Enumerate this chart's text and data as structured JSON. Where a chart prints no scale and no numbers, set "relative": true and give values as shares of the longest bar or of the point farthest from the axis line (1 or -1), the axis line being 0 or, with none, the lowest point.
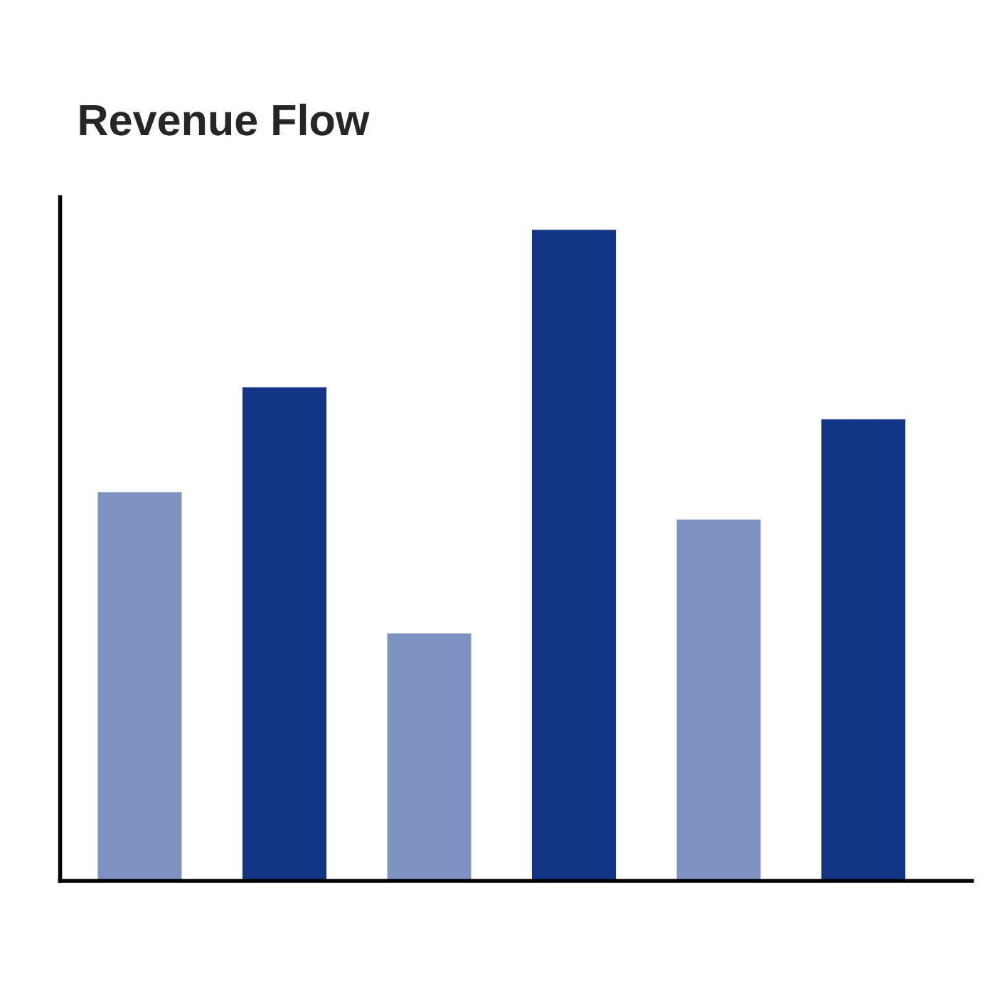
{
  "chart_data": {
    "type": "bar",
    "title": "Revenue Flow",
    "relative": true,
    "categories": [
      null,
      null,
      null,
      null,
      null,
      null
    ],
    "values": [
      0.597,
      0.758,
      0.38,
      1,
      0.555,
      0.709
    ],
    "colors": [
      "#7f93c3",
      "#113584",
      "#7f93c3",
      "#113584",
      "#7f93c3",
      "#113584"
    ]
  }
}
